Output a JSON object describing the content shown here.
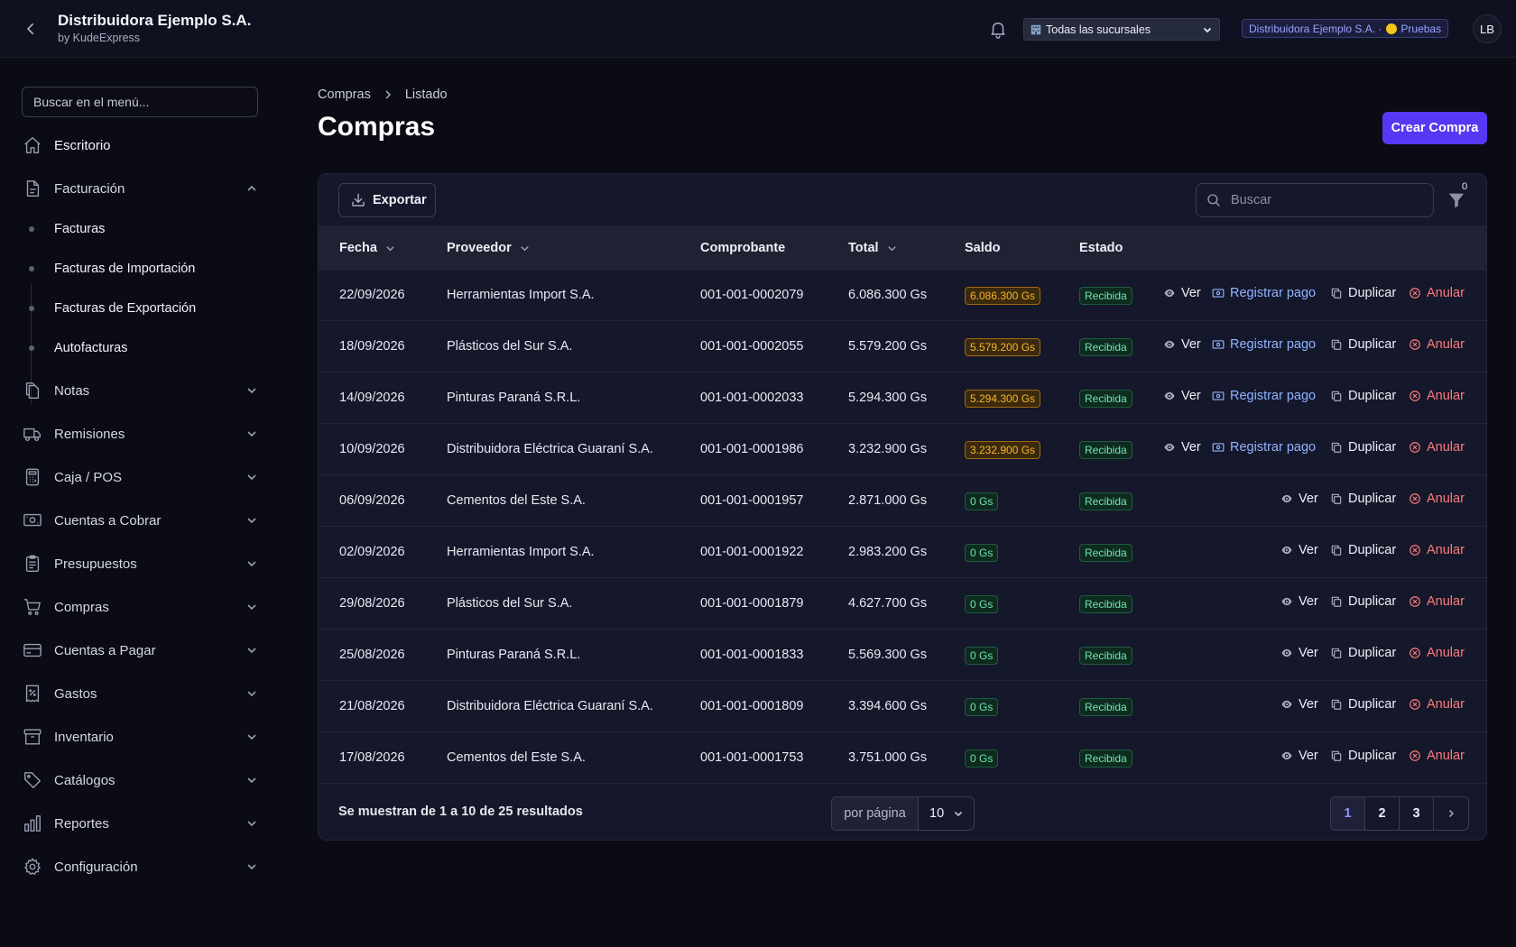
{
  "header": {
    "title": "Distribuidora Ejemplo S.A.",
    "subtitle": "by KudeExpress",
    "branch": "Todas las sucursales",
    "env_company": "Distribuidora Ejemplo S.A. ·",
    "env_label": "Pruebas",
    "avatar": "LB"
  },
  "sidebar": {
    "search_placeholder": "Buscar en el menú...",
    "items": [
      {
        "label": "Escritorio",
        "icon": "home-icon"
      },
      {
        "label": "Facturación",
        "icon": "document-icon",
        "expanded": true
      },
      {
        "label": "Notas",
        "icon": "notes-icon"
      },
      {
        "label": "Remisiones",
        "icon": "truck-icon"
      },
      {
        "label": "Caja / POS",
        "icon": "calculator-icon"
      },
      {
        "label": "Cuentas a Cobrar",
        "icon": "cash-icon"
      },
      {
        "label": "Presupuestos",
        "icon": "clipboard-icon"
      },
      {
        "label": "Compras",
        "icon": "cart-icon"
      },
      {
        "label": "Cuentas a Pagar",
        "icon": "credit-card-icon"
      },
      {
        "label": "Gastos",
        "icon": "receipt-percent-icon"
      },
      {
        "label": "Inventario",
        "icon": "archive-icon"
      },
      {
        "label": "Catálogos",
        "icon": "tag-icon"
      },
      {
        "label": "Reportes",
        "icon": "chart-bar-icon"
      },
      {
        "label": "Configuración",
        "icon": "gear-icon"
      }
    ],
    "facturacion_sub": [
      "Facturas",
      "Facturas de Importación",
      "Facturas de Exportación",
      "Autofacturas"
    ]
  },
  "breadcrumb": {
    "root": "Compras",
    "current": "Listado"
  },
  "page_title": "Compras",
  "create_button": "Crear Compra",
  "toolbar": {
    "export_label": "Exportar",
    "search_placeholder": "Buscar",
    "filter_count": "0"
  },
  "table": {
    "headers": {
      "fecha": "Fecha",
      "proveedor": "Proveedor",
      "comprobante": "Comprobante",
      "total": "Total",
      "saldo": "Saldo",
      "estado": "Estado"
    },
    "actions": {
      "ver": "Ver",
      "pago": "Registrar pago",
      "duplicar": "Duplicar",
      "anular": "Anular"
    },
    "rows": [
      {
        "fecha": "22/09/2026",
        "proveedor": "Herramientas Import S.A.",
        "comprobante": "001-001-0002079",
        "total": "6.086.300 Gs",
        "saldo": "6.086.300 Gs",
        "estado": "Recibida"
      },
      {
        "fecha": "18/09/2026",
        "proveedor": "Plásticos del Sur S.A.",
        "comprobante": "001-001-0002055",
        "total": "5.579.200 Gs",
        "saldo": "5.579.200 Gs",
        "estado": "Recibida"
      },
      {
        "fecha": "14/09/2026",
        "proveedor": "Pinturas Paraná S.R.L.",
        "comprobante": "001-001-0002033",
        "total": "5.294.300 Gs",
        "saldo": "5.294.300 Gs",
        "estado": "Recibida"
      },
      {
        "fecha": "10/09/2026",
        "proveedor": "Distribuidora Eléctrica Guaraní S.A.",
        "comprobante": "001-001-0001986",
        "total": "3.232.900 Gs",
        "saldo": "3.232.900 Gs",
        "estado": "Recibida"
      },
      {
        "fecha": "06/09/2026",
        "proveedor": "Cementos del Este S.A.",
        "comprobante": "001-001-0001957",
        "total": "2.871.000 Gs",
        "saldo": "0 Gs",
        "estado": "Recibida"
      },
      {
        "fecha": "02/09/2026",
        "proveedor": "Herramientas Import S.A.",
        "comprobante": "001-001-0001922",
        "total": "2.983.200 Gs",
        "saldo": "0 Gs",
        "estado": "Recibida"
      },
      {
        "fecha": "29/08/2026",
        "proveedor": "Plásticos del Sur S.A.",
        "comprobante": "001-001-0001879",
        "total": "4.627.700 Gs",
        "saldo": "0 Gs",
        "estado": "Recibida"
      },
      {
        "fecha": "25/08/2026",
        "proveedor": "Pinturas Paraná S.R.L.",
        "comprobante": "001-001-0001833",
        "total": "5.569.300 Gs",
        "saldo": "0 Gs",
        "estado": "Recibida"
      },
      {
        "fecha": "21/08/2026",
        "proveedor": "Distribuidora Eléctrica Guaraní S.A.",
        "comprobante": "001-001-0001809",
        "total": "3.394.600 Gs",
        "saldo": "0 Gs",
        "estado": "Recibida"
      },
      {
        "fecha": "17/08/2026",
        "proveedor": "Cementos del Este S.A.",
        "comprobante": "001-001-0001753",
        "total": "3.751.000 Gs",
        "saldo": "0 Gs",
        "estado": "Recibida"
      }
    ]
  },
  "footer": {
    "results_text": "Se muestran de 1 a 10 de 25 resultados",
    "per_page_label": "por página",
    "per_page_value": "10",
    "pages": [
      "1",
      "2",
      "3"
    ]
  }
}
